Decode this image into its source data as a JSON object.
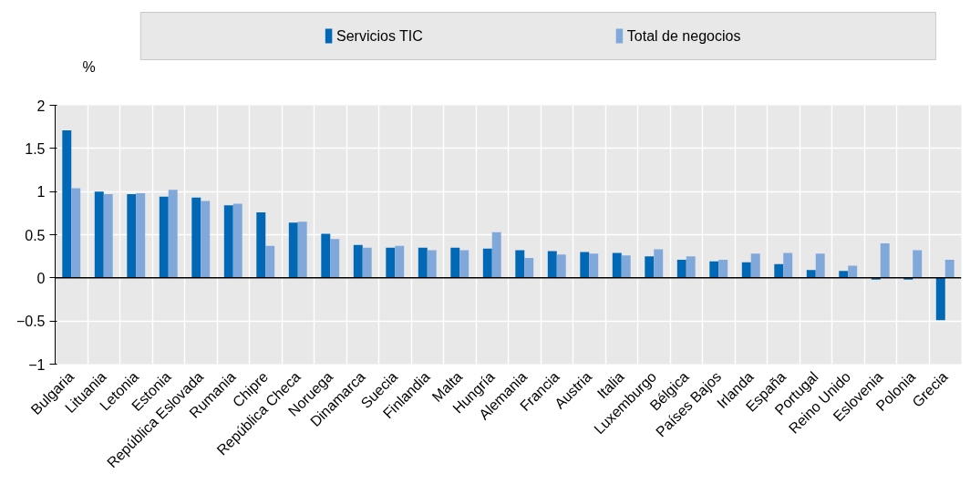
{
  "chart_data": {
    "type": "bar",
    "ylabel": "%",
    "categories": [
      "Bulgaria",
      "Lituania",
      "Letonia",
      "Estonia",
      "República Eslovada",
      "Rumania",
      "Chipre",
      "República Checa",
      "Noruega",
      "Dinamarca",
      "Suecia",
      "Finlandia",
      "Malta",
      "Hungría",
      "Alemania",
      "Francia",
      "Austria",
      "Italia",
      "Luxemburgo",
      "Bélgica",
      "Países Bajos",
      "Irlanda",
      "España",
      "Portugal",
      "Reino Unido",
      "Eslovenia",
      "Polonia",
      "Grecia"
    ],
    "series": [
      {
        "name": "Servicios TIC",
        "color": "#0068b4",
        "values": [
          1.71,
          1.0,
          0.97,
          0.94,
          0.93,
          0.84,
          0.76,
          0.64,
          0.51,
          0.38,
          0.35,
          0.35,
          0.35,
          0.34,
          0.32,
          0.31,
          0.3,
          0.29,
          0.25,
          0.21,
          0.19,
          0.18,
          0.16,
          0.09,
          0.08,
          -0.02,
          -0.02,
          -0.49
        ]
      },
      {
        "name": "Total de negocios",
        "color": "#80a8da",
        "values": [
          1.04,
          0.97,
          0.98,
          1.02,
          0.89,
          0.86,
          0.37,
          0.65,
          0.45,
          0.35,
          0.37,
          0.32,
          0.32,
          0.53,
          0.23,
          0.27,
          0.28,
          0.26,
          0.33,
          0.25,
          0.21,
          0.28,
          0.29,
          0.28,
          0.14,
          0.4,
          0.32,
          0.21
        ]
      }
    ],
    "ylim": [
      -1,
      2
    ],
    "yticks": [
      -1,
      -0.5,
      0,
      0.5,
      1,
      1.5,
      2
    ],
    "grid": true,
    "legend": "top"
  }
}
